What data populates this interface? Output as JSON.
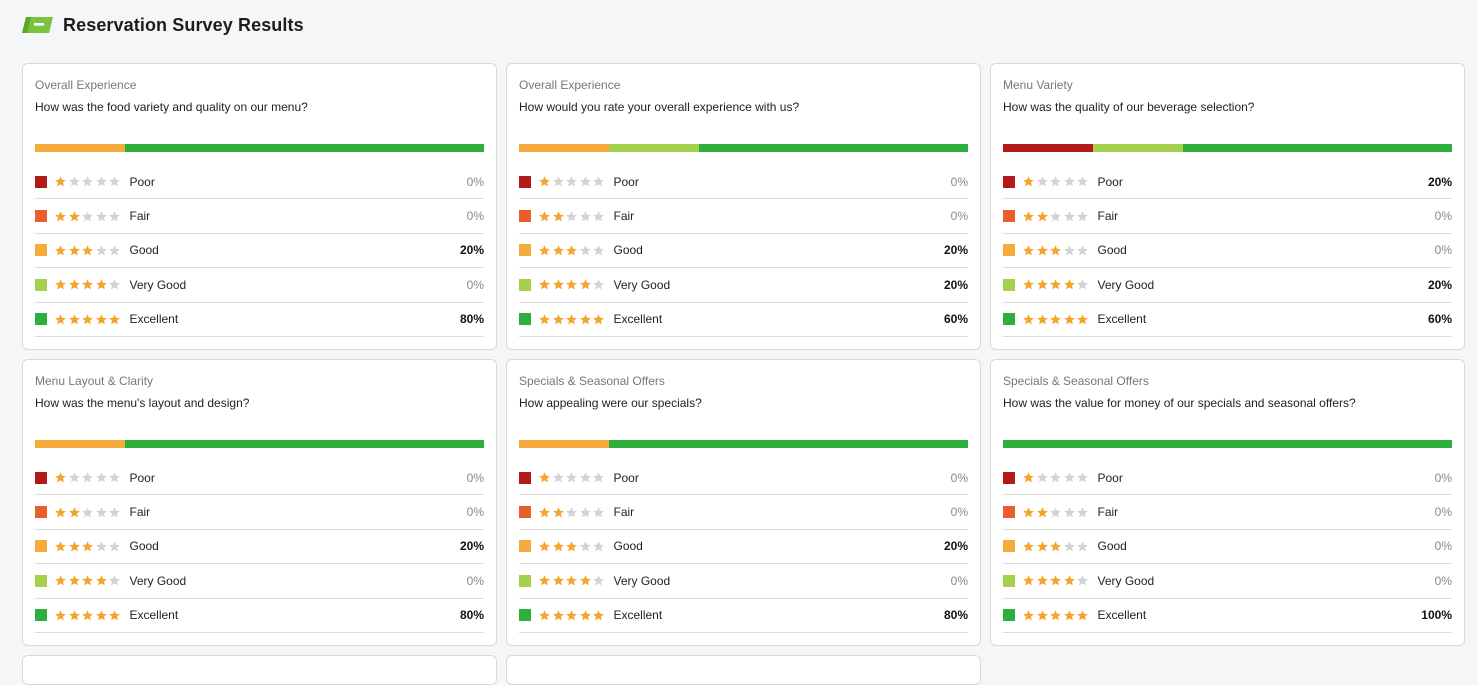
{
  "page": {
    "title": "Reservation Survey Results",
    "logo_icon": "tag-icon"
  },
  "colors": {
    "poor": "#b31b1b",
    "fair": "#e85d2a",
    "good": "#f6ab3d",
    "very_good": "#a5d24c",
    "excellent": "#2eae3c",
    "star_on": "#f4a52f",
    "star_off": "#d3d3d3"
  },
  "rating_labels": [
    "Poor",
    "Fair",
    "Good",
    "Very Good",
    "Excellent"
  ],
  "cards": [
    {
      "category": "Overall Experience",
      "question": "How was the food variety and quality on our menu?",
      "percents": [
        "0%",
        "0%",
        "20%",
        "0%",
        "80%"
      ],
      "values": [
        0,
        0,
        20,
        0,
        80
      ]
    },
    {
      "category": "Overall Experience",
      "question": "How would you rate your overall experience with us?",
      "percents": [
        "0%",
        "0%",
        "20%",
        "20%",
        "60%"
      ],
      "values": [
        0,
        0,
        20,
        20,
        60
      ]
    },
    {
      "category": "Menu Variety",
      "question": "How was the quality of our beverage selection?",
      "percents": [
        "20%",
        "0%",
        "0%",
        "20%",
        "60%"
      ],
      "values": [
        20,
        0,
        0,
        20,
        60
      ]
    },
    {
      "category": "Menu Layout & Clarity",
      "question": "How was the menu's layout and design?",
      "percents": [
        "0%",
        "0%",
        "20%",
        "0%",
        "80%"
      ],
      "values": [
        0,
        0,
        20,
        0,
        80
      ]
    },
    {
      "category": "Specials & Seasonal Offers",
      "question": "How appealing were our specials?",
      "percents": [
        "0%",
        "0%",
        "20%",
        "0%",
        "80%"
      ],
      "values": [
        0,
        0,
        20,
        0,
        80
      ]
    },
    {
      "category": "Specials & Seasonal Offers",
      "question": "How was the value for money of our specials and seasonal offers?",
      "percents": [
        "0%",
        "0%",
        "0%",
        "0%",
        "100%"
      ],
      "values": [
        0,
        0,
        0,
        0,
        100
      ]
    }
  ]
}
